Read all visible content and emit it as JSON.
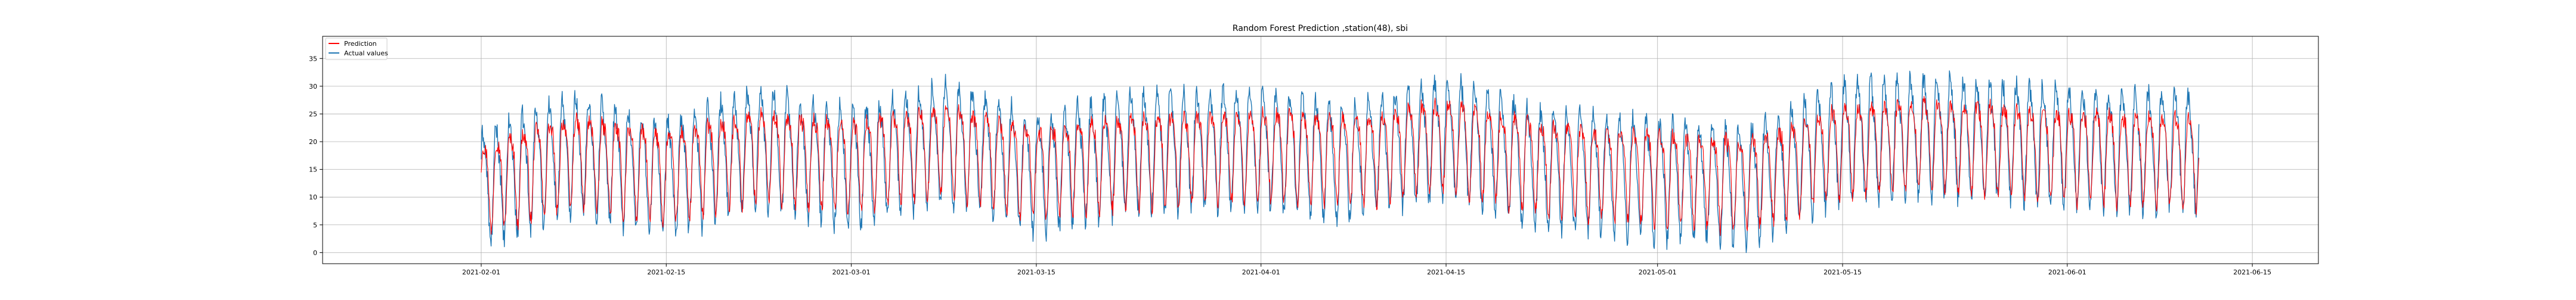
{
  "chart_data": {
    "type": "line",
    "title": "Random Forest Prediction ,station(48), sbi",
    "xlabel": "",
    "ylabel": "",
    "x_range": [
      "2021-01-20",
      "2021-06-20"
    ],
    "data_range": [
      "2021-02-01",
      "2021-06-11"
    ],
    "ylim": [
      -2,
      39
    ],
    "grid": true,
    "legend_position": "top-left",
    "x_ticks": [
      "2021-02-01",
      "2021-02-15",
      "2021-03-01",
      "2021-03-15",
      "2021-04-01",
      "2021-04-15",
      "2021-05-01",
      "2021-05-15",
      "2021-06-01",
      "2021-06-15"
    ],
    "y_ticks": [
      0,
      5,
      10,
      15,
      20,
      25,
      30,
      35
    ],
    "x_tick_labels": [
      "2021-02-01",
      "2021-02-15",
      "2021-03-01",
      "2021-03-15",
      "2021-04-01",
      "2021-04-15",
      "2021-05-01",
      "2021-05-15",
      "2021-06-01",
      "2021-06-15"
    ],
    "y_tick_labels": [
      "0",
      "5",
      "10",
      "15",
      "20",
      "25",
      "30",
      "35"
    ],
    "series": [
      {
        "name": "Prediction",
        "color": "#ff0000",
        "x": [
          "2021-02-01",
          "2021-02-08",
          "2021-02-15",
          "2021-02-22",
          "2021-03-01",
          "2021-03-08",
          "2021-03-15",
          "2021-03-22",
          "2021-04-01",
          "2021-04-08",
          "2021-04-15",
          "2021-04-22",
          "2021-05-01",
          "2021-05-08",
          "2021-05-15",
          "2021-05-22",
          "2021-06-01",
          "2021-06-11"
        ],
        "values": [
          13,
          18,
          15,
          19,
          17,
          20,
          16,
          18,
          19,
          18,
          21,
          17,
          15,
          14,
          20,
          21,
          19,
          18
        ]
      },
      {
        "name": "Actual values",
        "color": "#1f77b4",
        "x": [
          "2021-02-01",
          "2021-02-08",
          "2021-02-15",
          "2021-02-22",
          "2021-03-01",
          "2021-03-08",
          "2021-03-15",
          "2021-03-22",
          "2021-04-01",
          "2021-04-08",
          "2021-04-15",
          "2021-04-22",
          "2021-05-01",
          "2021-05-08",
          "2021-05-15",
          "2021-05-22",
          "2021-06-01",
          "2021-06-11"
        ],
        "values": [
          12,
          19,
          14,
          20,
          16,
          21,
          15,
          19,
          20,
          17,
          22,
          16,
          14,
          13,
          21,
          22,
          20,
          19
        ]
      }
    ]
  }
}
